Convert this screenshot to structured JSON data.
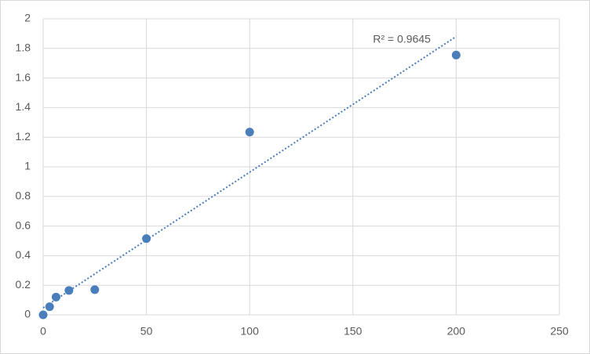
{
  "chart_data": {
    "type": "scatter",
    "series": [
      {
        "color": "#4a7ebb",
        "x": [
          0,
          3.125,
          6.25,
          12.5,
          25,
          50,
          100,
          200
        ],
        "values": [
          0,
          0.055,
          0.12,
          0.165,
          0.17,
          0.515,
          1.235,
          1.755
        ]
      }
    ],
    "trendline": {
      "type": "linear",
      "label": "R² = 0.9645",
      "color": "#4a7ebb"
    },
    "xlim": [
      0,
      250
    ],
    "xticks": [
      0,
      50,
      100,
      150,
      200,
      250
    ],
    "ylim": [
      0,
      2
    ],
    "yticks": [
      0,
      0.2,
      0.4,
      0.6,
      0.8,
      1,
      1.2,
      1.4,
      1.6,
      1.8,
      2
    ],
    "grid": true
  }
}
